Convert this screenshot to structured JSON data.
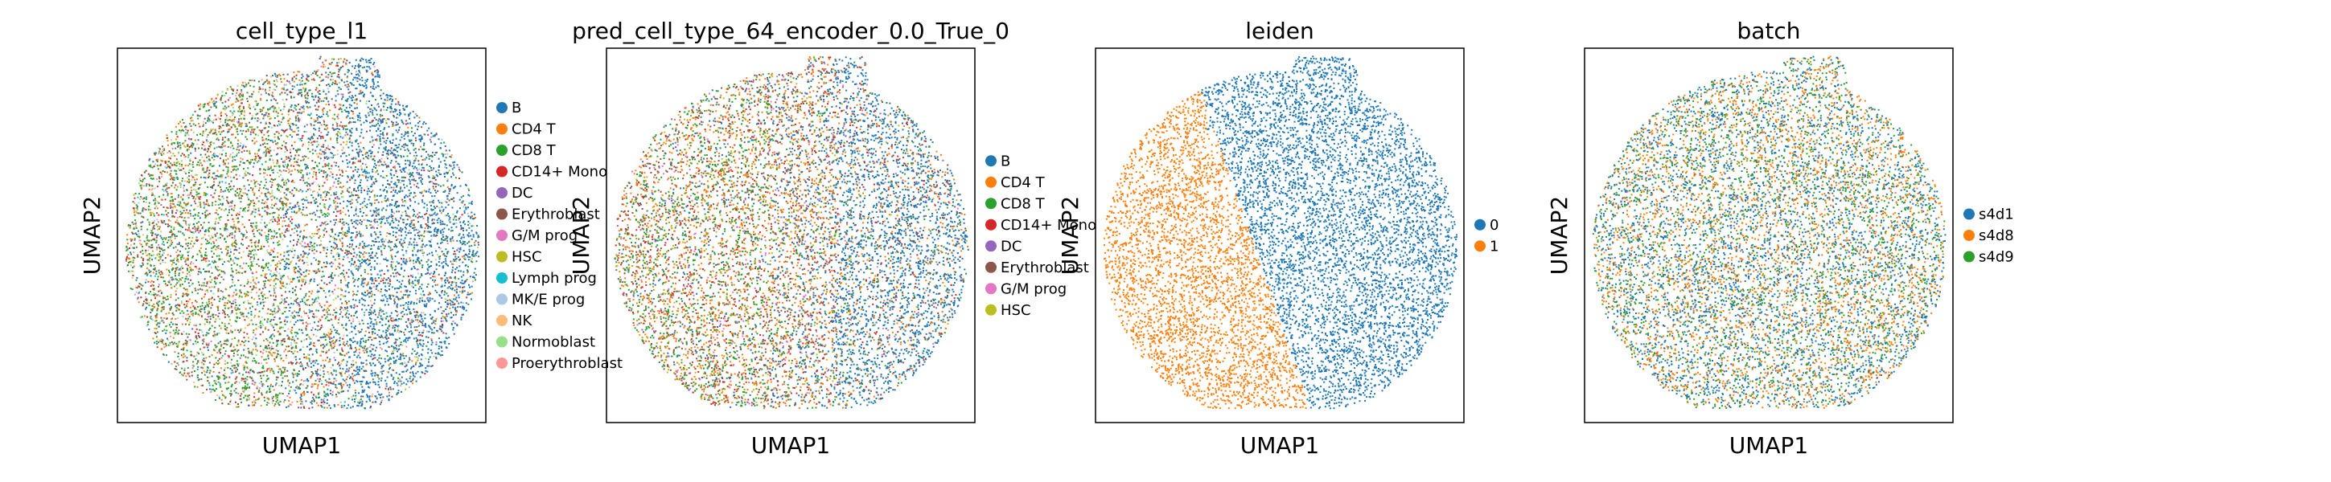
{
  "chart_data": [
    {
      "type": "scatter",
      "title": "cell_type_l1",
      "xlabel": "UMAP1",
      "ylabel": "UMAP2",
      "grid": false,
      "legend_position": "right",
      "series": [
        {
          "name": "B",
          "color": "#1f77b4",
          "share": 0.28
        },
        {
          "name": "CD4 T",
          "color": "#ff7f0e",
          "share": 0.13
        },
        {
          "name": "CD8 T",
          "color": "#2ca02c",
          "share": 0.16
        },
        {
          "name": "CD14+ Mono",
          "color": "#d62728",
          "share": 0.08
        },
        {
          "name": "DC",
          "color": "#9467bd",
          "share": 0.01
        },
        {
          "name": "Erythroblast",
          "color": "#8c564b",
          "share": 0.12
        },
        {
          "name": "G/M prog",
          "color": "#e377c2",
          "share": 0.03
        },
        {
          "name": "HSC",
          "color": "#bcbd22",
          "share": 0.03
        },
        {
          "name": "Lymph prog",
          "color": "#17becf",
          "share": 0.02
        },
        {
          "name": "MK/E prog",
          "color": "#aec7e8",
          "share": 0.03
        },
        {
          "name": "NK",
          "color": "#ffbb78",
          "share": 0.04
        },
        {
          "name": "Normoblast",
          "color": "#98df8a",
          "share": 0.04
        },
        {
          "name": "Proerythroblast",
          "color": "#ff9896",
          "share": 0.03
        }
      ]
    },
    {
      "type": "scatter",
      "title": "pred_cell_type_64_encoder_0.0_True_0",
      "xlabel": "UMAP1",
      "ylabel": "UMAP2",
      "grid": false,
      "legend_position": "right",
      "series": [
        {
          "name": "B",
          "color": "#1f77b4",
          "share": 0.24
        },
        {
          "name": "CD4 T",
          "color": "#ff7f0e",
          "share": 0.28
        },
        {
          "name": "CD8 T",
          "color": "#2ca02c",
          "share": 0.12
        },
        {
          "name": "CD14+ Mono",
          "color": "#d62728",
          "share": 0.08
        },
        {
          "name": "DC",
          "color": "#9467bd",
          "share": 0.02
        },
        {
          "name": "Erythroblast",
          "color": "#8c564b",
          "share": 0.18
        },
        {
          "name": "G/M prog",
          "color": "#e377c2",
          "share": 0.04
        },
        {
          "name": "HSC",
          "color": "#bcbd22",
          "share": 0.04
        }
      ]
    },
    {
      "type": "scatter",
      "title": "leiden",
      "xlabel": "UMAP1",
      "ylabel": "UMAP2",
      "grid": false,
      "legend_position": "right",
      "series": [
        {
          "name": "0",
          "color": "#1f77b4",
          "share": 0.55
        },
        {
          "name": "1",
          "color": "#ff7f0e",
          "share": 0.45
        }
      ]
    },
    {
      "type": "scatter",
      "title": "batch",
      "xlabel": "UMAP1",
      "ylabel": "UMAP2",
      "grid": false,
      "legend_position": "right",
      "series": [
        {
          "name": "s4d1",
          "color": "#1f77b4",
          "share": 0.4
        },
        {
          "name": "s4d8",
          "color": "#ff7f0e",
          "share": 0.35
        },
        {
          "name": "s4d9",
          "color": "#2ca02c",
          "share": 0.25
        }
      ]
    }
  ]
}
